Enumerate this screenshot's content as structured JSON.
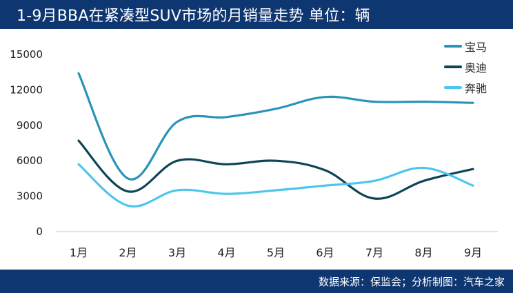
{
  "title": "1-9月BBA在紧凑型SUV市场的月销量走势  单位：辆",
  "source": "数据来源：保监会；分析制图：汽车之家",
  "colors": {
    "header_bg": "#0e3670",
    "bmw": "#2a94b8",
    "audi": "#0d4556",
    "benz": "#4cc6ee"
  },
  "chart_data": {
    "type": "line",
    "title": "1-9月BBA在紧凑型SUV市场的月销量走势  单位：辆",
    "categories": [
      "1月",
      "2月",
      "3月",
      "4月",
      "5月",
      "6月",
      "7月",
      "8月",
      "9月"
    ],
    "series": [
      {
        "name": "宝马",
        "color": "#2a94b8",
        "values": [
          13400,
          4500,
          9300,
          9700,
          10400,
          11400,
          11000,
          11000,
          10900
        ]
      },
      {
        "name": "奥迪",
        "color": "#0d4556",
        "values": [
          7700,
          3400,
          6000,
          5700,
          6000,
          5200,
          2800,
          4300,
          5300
        ]
      },
      {
        "name": "奔驰",
        "color": "#4cc6ee",
        "values": [
          5700,
          2200,
          3500,
          3200,
          3500,
          3900,
          4300,
          5400,
          3900
        ]
      }
    ],
    "yticks": [
      "0",
      "3000",
      "6000",
      "9000",
      "12000",
      "15000"
    ],
    "ylim": [
      0,
      15000
    ],
    "grid": false,
    "legend": "top-right",
    "xlabel": "",
    "ylabel": ""
  }
}
